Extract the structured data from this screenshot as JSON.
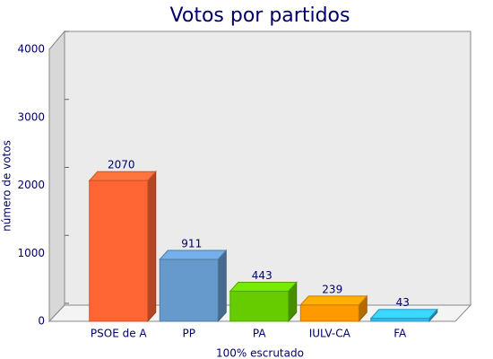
{
  "chart_data": {
    "type": "bar3d",
    "title": "Votos por partidos",
    "y_label": "número de votos",
    "x_label": "100% escrutado",
    "categories": [
      "PSOE de A",
      "PP",
      "PA",
      "IULV-CA",
      "FA"
    ],
    "values": [
      2070,
      911,
      443,
      239,
      43
    ],
    "colors": [
      "#ff6633",
      "#6699cc",
      "#66cc00",
      "#ff9900",
      "#33bbee"
    ],
    "ylim": [
      0,
      4000
    ],
    "yticks": [
      0,
      1000,
      2000,
      3000,
      4000
    ]
  }
}
